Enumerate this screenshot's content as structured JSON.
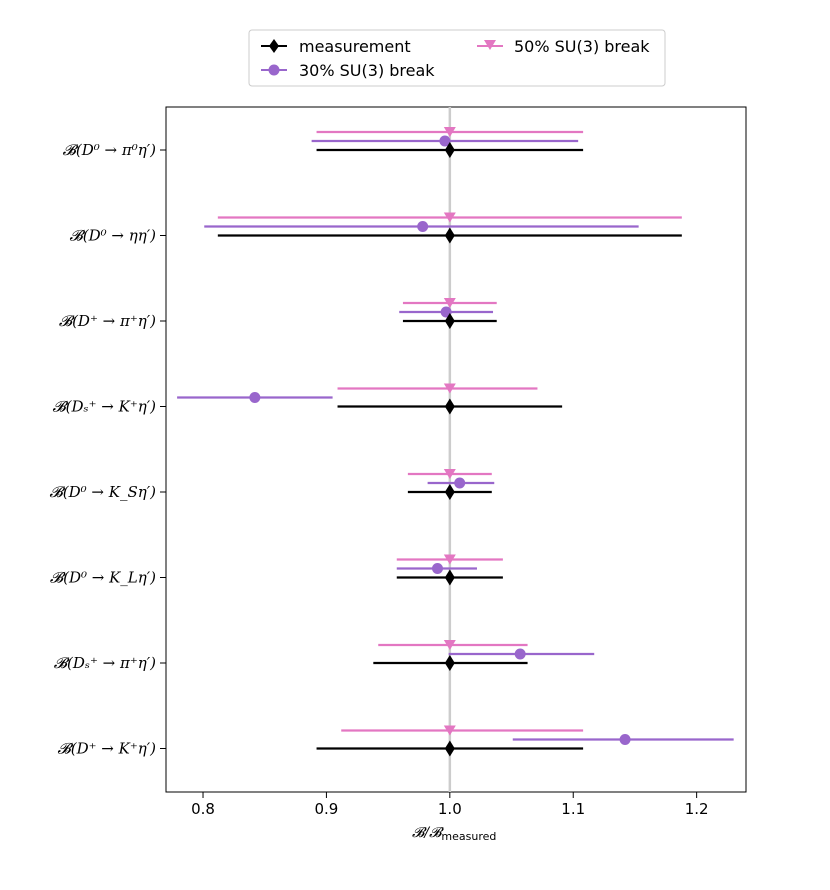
{
  "chart_data": {
    "type": "scatter",
    "orientation": "horizontal-errorbar",
    "title": "",
    "xlabel_main": "𝓑/𝓑",
    "xlabel_sub": "measured",
    "ylabel": "",
    "xlim": [
      0.77,
      1.24
    ],
    "xticks": [
      0.8,
      0.9,
      1.0,
      1.1,
      1.2
    ],
    "xtick_labels": [
      "0.8",
      "0.9",
      "1.0",
      "1.1",
      "1.2"
    ],
    "reference_line": 1.0,
    "grid": false,
    "legend_position": "top-center",
    "categories": [
      "𝓑(D⁰ → π⁰η′)",
      "𝓑(D⁰ → ηη′)",
      "𝓑(D⁺ → π⁺η′)",
      "𝓑(Dₛ⁺ → K⁺η′)",
      "𝓑(D⁰ → K_Sη′)",
      "𝓑(D⁰ → K_Lη′)",
      "𝓑(Dₛ⁺ → π⁺η′)",
      "𝓑(D⁺ → K⁺η′)"
    ],
    "series": [
      {
        "name": "measurement",
        "marker": "diamond",
        "color": "#000000",
        "values": [
          1.0,
          1.0,
          1.0,
          1.0,
          1.0,
          1.0,
          1.0,
          1.0
        ],
        "err_low": [
          0.892,
          0.812,
          0.962,
          0.909,
          0.966,
          0.957,
          0.938,
          0.892
        ],
        "err_high": [
          1.108,
          1.188,
          1.038,
          1.091,
          1.034,
          1.043,
          1.063,
          1.108
        ]
      },
      {
        "name": "30% SU(3) break",
        "marker": "circle",
        "color": "#9966cc",
        "values": [
          0.996,
          0.978,
          0.997,
          0.842,
          1.008,
          0.99,
          1.057,
          1.142
        ],
        "err_low": [
          0.888,
          0.801,
          0.959,
          0.779,
          0.982,
          0.957,
          0.999,
          1.051
        ],
        "err_high": [
          1.104,
          1.153,
          1.035,
          0.905,
          1.036,
          1.022,
          1.117,
          1.23
        ]
      },
      {
        "name": "50% SU(3) break",
        "marker": "triangle-down",
        "color": "#e377c2",
        "values": [
          1.0,
          1.0,
          1.0,
          1.0,
          1.0,
          1.0,
          1.0,
          1.0
        ],
        "err_low": [
          0.892,
          0.812,
          0.962,
          0.909,
          0.966,
          0.957,
          0.942,
          0.912
        ],
        "err_high": [
          1.108,
          1.188,
          1.038,
          1.071,
          1.034,
          1.043,
          1.063,
          1.108
        ]
      }
    ]
  },
  "legend": {
    "entries": [
      "measurement",
      "30% SU(3) break",
      "50% SU(3) break"
    ]
  }
}
